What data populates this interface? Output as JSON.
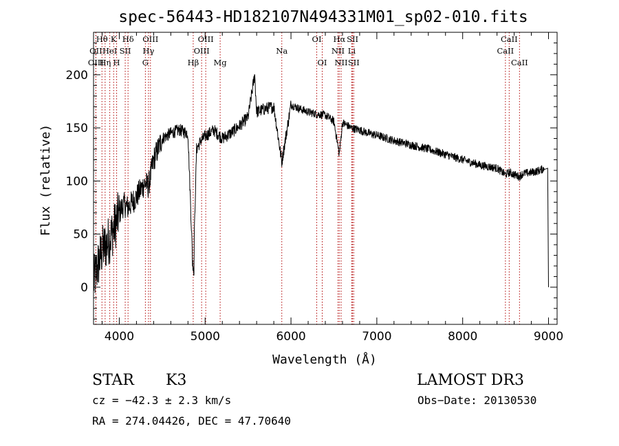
{
  "chart_data": {
    "type": "line",
    "title": "spec-56443-HD182107N494331M01_sp02-010.fits",
    "xlabel": "Wavelength (Å)",
    "ylabel": "Flux (relative)",
    "xlim": [
      3700,
      9100
    ],
    "ylim": [
      -35,
      240
    ],
    "xticks": [
      4000,
      5000,
      6000,
      7000,
      8000,
      9000
    ],
    "xtick_labels": [
      "4000",
      "5000",
      "6000",
      "7000",
      "8000",
      "9000"
    ],
    "yticks": [
      0,
      50,
      100,
      150,
      200
    ],
    "ytick_labels": [
      "0",
      "50",
      "100",
      "150",
      "200"
    ],
    "series": [
      {
        "name": "flux",
        "x": [
          3700,
          3750,
          3800,
          3850,
          3900,
          3950,
          4000,
          4050,
          4100,
          4150,
          4200,
          4250,
          4300,
          4340,
          4400,
          4450,
          4500,
          4600,
          4700,
          4800,
          4861,
          4900,
          4950,
          5000,
          5100,
          5200,
          5300,
          5400,
          5500,
          5577,
          5600,
          5700,
          5800,
          5893,
          6000,
          6100,
          6200,
          6300,
          6400,
          6500,
          6563,
          6600,
          6700,
          6800,
          6900,
          7000,
          7200,
          7400,
          7600,
          7800,
          8000,
          8200,
          8400,
          8498,
          8542,
          8600,
          8662,
          8700,
          8800,
          8900,
          8950,
          9000
        ],
        "y": [
          5,
          20,
          35,
          40,
          48,
          58,
          70,
          78,
          75,
          80,
          85,
          92,
          98,
          95,
          120,
          130,
          140,
          145,
          148,
          145,
          10,
          130,
          138,
          142,
          148,
          140,
          145,
          152,
          160,
          200,
          165,
          168,
          170,
          118,
          172,
          168,
          165,
          163,
          162,
          156,
          125,
          155,
          150,
          148,
          145,
          143,
          138,
          134,
          130,
          125,
          120,
          115,
          112,
          106,
          108,
          106,
          104,
          107,
          108,
          110,
          112,
          0
        ]
      }
    ],
    "spectral_lines": [
      {
        "name": "Hθ",
        "wavelength": 3798,
        "row": 0
      },
      {
        "name": "OII",
        "wavelength": 3727,
        "row": 1
      },
      {
        "name": "OIII",
        "wavelength": 3727,
        "row": 2
      },
      {
        "name": "K",
        "wavelength": 3934,
        "row": 0
      },
      {
        "name": "HeI",
        "wavelength": 3889,
        "row": 1
      },
      {
        "name": "Hη",
        "wavelength": 3835,
        "row": 2
      },
      {
        "name": "SII",
        "wavelength": 4069,
        "row": 1
      },
      {
        "name": "H",
        "wavelength": 3969,
        "row": 2
      },
      {
        "name": "Hδ",
        "wavelength": 4102,
        "row": 0
      },
      {
        "name": "OIII",
        "wavelength": 4363,
        "row": 0
      },
      {
        "name": "Hγ",
        "wavelength": 4340,
        "row": 1
      },
      {
        "name": "G",
        "wavelength": 4304,
        "row": 2
      },
      {
        "name": "Hβ",
        "wavelength": 4861,
        "row": 2
      },
      {
        "name": "OIII",
        "wavelength": 5007,
        "row": 0
      },
      {
        "name": "OIII",
        "wavelength": 4959,
        "row": 1
      },
      {
        "name": "Mg",
        "wavelength": 5175,
        "row": 2
      },
      {
        "name": "Na",
        "wavelength": 5893,
        "row": 1
      },
      {
        "name": "OI",
        "wavelength": 6300,
        "row": 0
      },
      {
        "name": "OI",
        "wavelength": 6364,
        "row": 2
      },
      {
        "name": "Hα",
        "wavelength": 6563,
        "row": 0
      },
      {
        "name": "NII",
        "wavelength": 6548,
        "row": 1
      },
      {
        "name": "NII",
        "wavelength": 6584,
        "row": 2
      },
      {
        "name": "SII",
        "wavelength": 6717,
        "row": 0
      },
      {
        "name": "Li",
        "wavelength": 6708,
        "row": 1
      },
      {
        "name": "SII",
        "wavelength": 6731,
        "row": 2
      },
      {
        "name": "CaII",
        "wavelength": 8542,
        "row": 0
      },
      {
        "name": "CaII",
        "wavelength": 8498,
        "row": 1
      },
      {
        "name": "CaII",
        "wavelength": 8662,
        "row": 2
      }
    ]
  },
  "info": {
    "object_class": "STAR",
    "subclass": "K3",
    "survey": "LAMOST DR3",
    "cz": "cz = −42.3 ± 2.3 km/s",
    "obs_date": "Obs−Date: 20130530",
    "coords": "RA = 274.04426, DEC =  47.70640"
  }
}
